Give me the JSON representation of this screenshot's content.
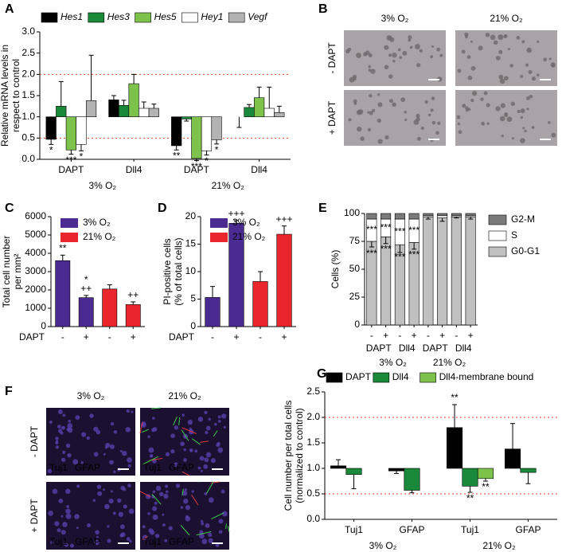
{
  "chart_data": [
    {
      "type": "bar",
      "label": "A",
      "ylabel": [
        "Relative mRNA levels in",
        "respect to control"
      ],
      "ylim": [
        0,
        3
      ],
      "yticks": [
        {
          "value": 0,
          "label": "0.0"
        },
        0.5,
        {
          "value": 1,
          "label": "1.0"
        },
        1.5,
        {
          "value": 2,
          "label": "2.0"
        },
        2.5,
        {
          "value": 3,
          "label": "3.0"
        }
      ],
      "baseline": 1,
      "reference_lines": [
        0.5,
        2
      ],
      "reference_color": "#e0402a",
      "categories": [
        "DAPT",
        "Dll4",
        "DAPT",
        "Dll4"
      ],
      "groups": [
        {
          "label": "3% O₂",
          "color": "#5b2d8e"
        },
        {
          "label": "21% O₂",
          "color": "#e8401c"
        }
      ],
      "legend_position": "top",
      "legend_font_style": "italic",
      "series": [
        {
          "name": "Hes1",
          "color": "#000000",
          "values": [
            0.47,
            1.4,
            0.32,
            1.0
          ],
          "errors": [
            0.12,
            0.1,
            0.1,
            0.25
          ],
          "significance": [
            "*",
            null,
            "**",
            null
          ]
        },
        {
          "name": "Hes3",
          "color": "#1a8a3a",
          "values": [
            1.25,
            1.27,
            0.95,
            1.22
          ],
          "errors": [
            0.58,
            0.12,
            0.05,
            0.07
          ]
        },
        {
          "name": "Hes5",
          "color": "#7dc24b",
          "values": [
            0.22,
            1.78,
            0.02,
            1.45
          ],
          "errors": [
            0.1,
            0.22,
            0.05,
            0.25
          ],
          "significance": [
            "***",
            null,
            "***",
            null
          ]
        },
        {
          "name": "Hey1",
          "color": "#ffffff",
          "values": [
            0.35,
            1.2,
            0.2,
            1.2
          ],
          "errors": [
            0.15,
            0.15,
            0.1,
            0.5
          ],
          "significance": [
            "*",
            null,
            "*",
            null
          ]
        },
        {
          "name": "Vegf",
          "color": "#b3b3b3",
          "values": [
            1.38,
            1.2,
            0.46,
            1.1
          ],
          "errors": [
            1.07,
            0.1,
            0.1,
            0.15
          ],
          "significance": [
            null,
            null,
            "*",
            null
          ]
        }
      ]
    },
    {
      "type": "bar",
      "label": "C",
      "ylabel": [
        "Total cell number",
        "per mm²"
      ],
      "ylim": [
        0,
        6000
      ],
      "yticks": [
        0,
        1000,
        2000,
        3000,
        4000,
        5000,
        6000
      ],
      "x_row_label": "DAPT",
      "categories": [
        "-",
        "+",
        "-",
        "+"
      ],
      "values": [
        3600,
        1580,
        2050,
        1200
      ],
      "errors": [
        300,
        120,
        230,
        150
      ],
      "colors": [
        "#4b2a91",
        "#4b2a91",
        "#e8262b",
        "#e8262b"
      ],
      "significance": [
        [
          "**"
        ],
        [
          "++",
          "*"
        ],
        null,
        [
          "++"
        ]
      ],
      "legend_position": "upper right",
      "legend": [
        {
          "name": "3% O₂",
          "color": "#4b2a91"
        },
        {
          "name": "21% O₂",
          "color": "#e8262b"
        }
      ]
    },
    {
      "type": "bar",
      "label": "D",
      "ylabel": [
        "PI-positive cells",
        "(% of total cells)"
      ],
      "ylim": [
        0,
        20
      ],
      "yticks": [
        0,
        5,
        10,
        15,
        20
      ],
      "x_row_label": "DAPT",
      "categories": [
        "-",
        "+",
        "-",
        "+"
      ],
      "values": [
        5.3,
        18.8,
        8.2,
        16.8
      ],
      "errors": [
        2.0,
        0.5,
        1.8,
        1.5
      ],
      "colors": [
        "#4b2a91",
        "#4b2a91",
        "#e8262b",
        "#e8262b"
      ],
      "significance": [
        null,
        [
          "+++"
        ],
        null,
        [
          "+++"
        ]
      ],
      "legend_position": "upper right",
      "legend": [
        {
          "name": "3% O₂",
          "color": "#4b2a91"
        },
        {
          "name": "21% O₂",
          "color": "#e8262b"
        }
      ]
    },
    {
      "type": "stacked_bar",
      "label": "E",
      "ylabel": [
        "Cells (%)"
      ],
      "ylim": [
        0,
        100
      ],
      "yticks": [
        0,
        25,
        50,
        75,
        100
      ],
      "categories": [
        "-",
        "+",
        "-",
        "+",
        "-",
        "+",
        "-",
        "+"
      ],
      "subgroups": [
        "DAPT",
        "Dll4",
        "DAPT",
        "Dll4"
      ],
      "groups": [
        {
          "label": "3% O₂",
          "color": "#5b2d8e"
        },
        {
          "label": "21% O₂",
          "color": "#e8401c"
        }
      ],
      "legend_position": "right",
      "series": [
        {
          "name": "G0-G1",
          "color": "#c0c0c0",
          "values": [
            75,
            79,
            72,
            74,
            97,
            96,
            97,
            97
          ],
          "errors": [
            5,
            6,
            7,
            6,
            2,
            3,
            1,
            2
          ],
          "significance": [
            "***",
            "***",
            "***",
            "***",
            null,
            null,
            null,
            null
          ]
        },
        {
          "name": "S",
          "color": "#ffffff",
          "values": [
            20,
            16,
            23,
            21,
            1,
            2,
            1,
            1
          ],
          "significance": [
            "***",
            "***",
            "***",
            "***",
            null,
            null,
            null,
            null
          ]
        },
        {
          "name": "G2-M",
          "color": "#7a7a7a",
          "values": [
            5,
            5,
            5,
            5,
            2,
            2,
            2,
            2
          ]
        }
      ]
    },
    {
      "type": "bar",
      "label": "G",
      "ylabel": [
        "Cell number per total cells",
        "(normalized to control)"
      ],
      "ylim": [
        0,
        2.5
      ],
      "yticks": [
        {
          "value": 0,
          "label": "0.0"
        },
        0.5,
        {
          "value": 1,
          "label": "1.0"
        },
        1.5,
        {
          "value": 2,
          "label": "2.0"
        },
        2.5
      ],
      "baseline": 1,
      "reference_lines": [
        0.5,
        2
      ],
      "reference_color": "#e0402a",
      "categories": [
        "Tuj1",
        "GFAP",
        "Tuj1",
        "GFAP"
      ],
      "groups": [
        {
          "label": "3% O₂",
          "color": "#5b2d8e"
        },
        {
          "label": "21% O₂",
          "color": "#e8401c"
        }
      ],
      "legend_position": "top",
      "series": [
        {
          "name": "DAPT",
          "color": "#000000",
          "values": [
            1.05,
            0.95,
            1.8,
            1.38
          ],
          "errors": [
            0.12,
            0.05,
            0.45,
            0.5
          ],
          "significance": [
            null,
            null,
            "**",
            null
          ]
        },
        {
          "name": "Dll4",
          "color": "#1a8a3a",
          "values": [
            0.88,
            0.57,
            0.65,
            0.92
          ],
          "errors": [
            0.28,
            0.05,
            0.12,
            0.22
          ],
          "significance": [
            null,
            null,
            "**",
            null
          ]
        },
        {
          "name": "Dll4-membrane bound",
          "color": "#7dc24b",
          "values": [
            null,
            null,
            0.8,
            null
          ],
          "errors": [
            null,
            null,
            0.05,
            null
          ],
          "significance": [
            null,
            null,
            "**",
            null
          ]
        }
      ]
    }
  ],
  "image_panels": [
    {
      "label": "B",
      "columns": [
        "3% O₂",
        "21% O₂"
      ],
      "column_colors": [
        "#5b2d8e",
        "#e8401c"
      ],
      "rows": [
        "- DAPT",
        "+ DAPT"
      ]
    },
    {
      "label": "F",
      "columns": [
        "3% O₂",
        "21% O₂"
      ],
      "column_colors": [
        "#5b2d8e",
        "#e8401c"
      ],
      "rows": [
        "- DAPT",
        "+ DAPT"
      ],
      "overlay": [
        "Tuj1",
        "GFAP"
      ],
      "overlay_colors": [
        "#ff3030",
        "#3adc3a"
      ]
    }
  ]
}
